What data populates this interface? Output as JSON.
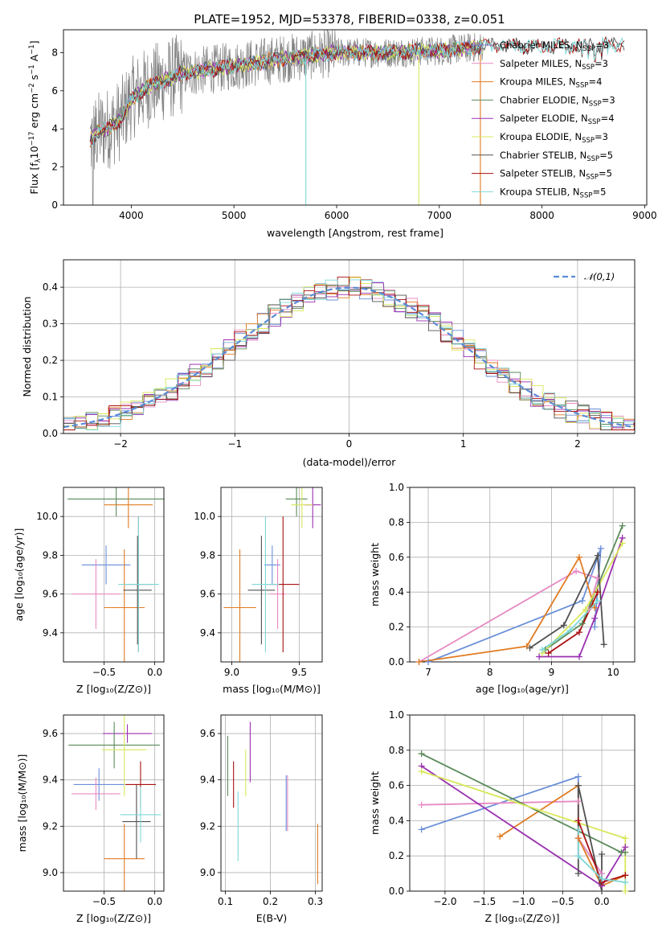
{
  "title": "PLATE=1952, MJD=53378, FIBERID=0338, z=0.051",
  "colors": {
    "Chabrier MILES": "#6a8fd8",
    "Salpeter MILES": "#e78ac3",
    "Kroupa MILES": "#e07b22",
    "Chabrier ELODIE": "#5a8a5a",
    "Salpeter ELODIE": "#9a30b0",
    "Kroupa ELODIE": "#d8e85a",
    "Chabrier STELIB": "#505050",
    "Salpeter STELIB": "#aa1010",
    "Kroupa STELIB": "#7fd7d7",
    "data": "#808080",
    "normal": "#5b8bd6"
  },
  "chart_data": [
    {
      "panel": "spectrum",
      "type": "line",
      "xlabel": "wavelength [Angstrom, rest frame]",
      "ylabel": "Flux [f_λ 10^-17 erg cm^-2 s^-1 A^-1]",
      "xlim": [
        3340,
        9020
      ],
      "ylim": [
        0,
        9.2
      ],
      "xticks": [
        4000,
        5000,
        6000,
        7000,
        8000,
        9000
      ],
      "yticks": [
        0,
        2,
        4,
        6,
        8
      ],
      "legend": [
        {
          "name": "Chabrier MILES",
          "nssp": "3"
        },
        {
          "name": "Salpeter MILES",
          "nssp": "3"
        },
        {
          "name": "Kroupa MILES",
          "nssp": "4"
        },
        {
          "name": "Chabrier ELODIE",
          "nssp": "3"
        },
        {
          "name": "Salpeter ELODIE",
          "nssp": "4"
        },
        {
          "name": "Kroupa ELODIE",
          "nssp": "3"
        },
        {
          "name": "Chabrier STELIB",
          "nssp": "5"
        },
        {
          "name": "Salpeter STELIB",
          "nssp": "5"
        },
        {
          "name": "Kroupa STELIB",
          "nssp": "5"
        }
      ],
      "legend_placement": "right",
      "continuum": [
        [
          3600,
          3.4
        ],
        [
          3700,
          3.9
        ],
        [
          3800,
          4.1
        ],
        [
          3900,
          4.5
        ],
        [
          4000,
          5.6
        ],
        [
          4200,
          6.3
        ],
        [
          4500,
          6.9
        ],
        [
          5000,
          7.3
        ],
        [
          5500,
          7.7
        ],
        [
          6000,
          8.0
        ],
        [
          6500,
          8.0
        ],
        [
          7000,
          8.1
        ],
        [
          7400,
          8.3
        ],
        [
          7600,
          8.4
        ],
        [
          8000,
          8.3
        ],
        [
          8500,
          8.4
        ],
        [
          8800,
          8.5
        ]
      ],
      "dropouts": [
        5700,
        6800,
        7400
      ]
    },
    {
      "panel": "residuals",
      "type": "step",
      "xlabel": "(data-model)/error",
      "ylabel": "Normed distribution",
      "xlim": [
        -2.5,
        2.5
      ],
      "ylim": [
        0,
        0.475
      ],
      "xticks": [
        -2,
        -1,
        0,
        1,
        2
      ],
      "yticks": [
        0.0,
        0.1,
        0.2,
        0.3,
        0.4
      ],
      "bin_width": 0.1,
      "reference": {
        "name": "𝒩(0,1)",
        "style": "dashed"
      },
      "legend_placement": "top-right"
    },
    {
      "panel": "age-vs-Z",
      "type": "errorbar",
      "xlabel": "Z [log10(Z/Z⊙)]",
      "ylabel": "age [log10(age/yr)]",
      "xlim": [
        -0.9,
        0.09
      ],
      "ylim": [
        9.25,
        10.15
      ],
      "xticks": [
        -0.5,
        0.0
      ],
      "yticks": [
        9.4,
        9.6,
        9.8,
        10.0
      ],
      "points": [
        {
          "series": "Chabrier ELODIE",
          "x": -0.38,
          "y": 10.09,
          "xerr": 0.48,
          "yerr": 0.09
        },
        {
          "series": "Kroupa MILES",
          "x": -0.26,
          "y": 10.06,
          "xerr": 0.24,
          "yerr": 0.12
        },
        {
          "series": "Chabrier MILES",
          "x": -0.48,
          "y": 9.75,
          "xerr": 0.24,
          "yerr": 0.1
        },
        {
          "series": "Salpeter MILES",
          "x": -0.58,
          "y": 9.6,
          "xerr": 0.24,
          "yerr": 0.18
        },
        {
          "series": "Kroupa MILES",
          "x": -0.3,
          "y": 9.53,
          "xerr": 0.2,
          "yerr": 0.3
        },
        {
          "series": "Chabrier STELIB",
          "x": -0.17,
          "y": 9.62,
          "xerr": 0.14,
          "yerr": 0.28
        },
        {
          "series": "Salpeter STELIB",
          "x": -0.16,
          "y": 9.65,
          "xerr": 0.14,
          "yerr": 0.35
        },
        {
          "series": "Kroupa STELIB",
          "x": -0.16,
          "y": 9.65,
          "xerr": 0.2,
          "yerr": 0.35
        }
      ]
    },
    {
      "panel": "age-vs-mass",
      "type": "errorbar",
      "xlabel": "mass [log10(M/M⊙)]",
      "ylabel": "",
      "xlim": [
        8.92,
        9.67
      ],
      "ylim": [
        9.25,
        10.15
      ],
      "xticks": [
        9.0,
        9.5
      ],
      "yticks": [
        9.4,
        9.6,
        9.8,
        10.0
      ],
      "points": [
        {
          "series": "Chabrier ELODIE",
          "x": 9.48,
          "y": 10.09,
          "xerr": 0.08,
          "yerr": 0.09
        },
        {
          "series": "Salpeter ELODIE",
          "x": 9.6,
          "y": 10.06,
          "xerr": 0.06,
          "yerr": 0.12
        },
        {
          "series": "Kroupa ELODIE",
          "x": 9.52,
          "y": 10.06,
          "xerr": 0.08,
          "yerr": 0.12
        },
        {
          "series": "Chabrier MILES",
          "x": 9.3,
          "y": 9.75,
          "xerr": 0.06,
          "yerr": 0.1
        },
        {
          "series": "Salpeter MILES",
          "x": 9.34,
          "y": 9.6,
          "xerr": 0.06,
          "yerr": 0.18
        },
        {
          "series": "Kroupa MILES",
          "x": 9.06,
          "y": 9.53,
          "xerr": 0.12,
          "yerr": 0.3
        },
        {
          "series": "Chabrier STELIB",
          "x": 9.22,
          "y": 9.62,
          "xerr": 0.1,
          "yerr": 0.28
        },
        {
          "series": "Salpeter STELIB",
          "x": 9.38,
          "y": 9.65,
          "xerr": 0.12,
          "yerr": 0.35
        },
        {
          "series": "Kroupa STELIB",
          "x": 9.25,
          "y": 9.65,
          "xerr": 0.1,
          "yerr": 0.35
        }
      ]
    },
    {
      "panel": "weight-vs-age",
      "type": "line",
      "xlabel": "age [log10(age/yr)]",
      "ylabel": "mass weight",
      "xlim": [
        6.7,
        10.35
      ],
      "ylim": [
        0,
        1.0
      ],
      "xticks": [
        7,
        8,
        9,
        10
      ],
      "yticks": [
        0.0,
        0.2,
        0.4,
        0.6,
        0.8,
        1.0
      ],
      "series": [
        {
          "name": "Chabrier MILES",
          "points": [
            [
              7.0,
              0.0
            ],
            [
              9.5,
              0.35
            ],
            [
              9.8,
              0.65
            ],
            [
              9.7,
              0.2
            ]
          ]
        },
        {
          "name": "Salpeter MILES",
          "points": [
            [
              6.85,
              0.0
            ],
            [
              9.4,
              0.52
            ],
            [
              9.75,
              0.48
            ],
            [
              9.6,
              0.3
            ]
          ]
        },
        {
          "name": "Kroupa MILES",
          "points": [
            [
              6.85,
              0.0
            ],
            [
              8.6,
              0.09
            ],
            [
              9.45,
              0.6
            ],
            [
              9.7,
              0.31
            ]
          ]
        },
        {
          "name": "Chabrier ELODIE",
          "points": [
            [
              8.9,
              0.07
            ],
            [
              9.5,
              0.22
            ],
            [
              10.15,
              0.78
            ]
          ]
        },
        {
          "name": "Salpeter ELODIE",
          "points": [
            [
              8.8,
              0.03
            ],
            [
              9.45,
              0.03
            ],
            [
              9.7,
              0.25
            ],
            [
              10.15,
              0.71
            ]
          ]
        },
        {
          "name": "Kroupa ELODIE",
          "points": [
            [
              8.85,
              0.05
            ],
            [
              9.55,
              0.3
            ],
            [
              10.15,
              0.68
            ]
          ]
        },
        {
          "name": "Chabrier STELIB",
          "points": [
            [
              8.65,
              0.08
            ],
            [
              9.2,
              0.21
            ],
            [
              9.75,
              0.61
            ],
            [
              9.85,
              0.1
            ]
          ]
        },
        {
          "name": "Salpeter STELIB",
          "points": [
            [
              8.95,
              0.05
            ],
            [
              9.45,
              0.17
            ],
            [
              9.75,
              0.4
            ]
          ]
        },
        {
          "name": "Kroupa STELIB",
          "points": [
            [
              8.85,
              0.07
            ],
            [
              9.3,
              0.18
            ],
            [
              9.75,
              0.35
            ]
          ]
        }
      ]
    },
    {
      "panel": "mass-vs-Z",
      "type": "errorbar",
      "xlabel": "Z [log10(Z/Z⊙)]",
      "ylabel": "mass [log10(M/M⊙)]",
      "xlim": [
        -0.9,
        0.09
      ],
      "ylim": [
        8.92,
        9.68
      ],
      "xticks": [
        -0.5,
        0.0
      ],
      "yticks": [
        9.0,
        9.2,
        9.4,
        9.6
      ],
      "points": [
        {
          "series": "Salpeter ELODIE",
          "x": -0.27,
          "y": 9.6,
          "xerr": 0.24,
          "yerr": 0.04
        },
        {
          "series": "Chabrier ELODIE",
          "x": -0.4,
          "y": 9.55,
          "xerr": 0.45,
          "yerr": 0.1
        },
        {
          "series": "Kroupa ELODIE",
          "x": -0.3,
          "y": 9.53,
          "xerr": 0.22,
          "yerr": 0.2
        },
        {
          "series": "Chabrier MILES",
          "x": -0.55,
          "y": 9.38,
          "xerr": 0.25,
          "yerr": 0.07
        },
        {
          "series": "Salpeter MILES",
          "x": -0.58,
          "y": 9.34,
          "xerr": 0.24,
          "yerr": 0.07
        },
        {
          "series": "Kroupa MILES",
          "x": -0.3,
          "y": 9.06,
          "xerr": 0.2,
          "yerr": 0.15
        },
        {
          "series": "Chabrier STELIB",
          "x": -0.18,
          "y": 9.22,
          "xerr": 0.14,
          "yerr": 0.16
        },
        {
          "series": "Salpeter STELIB",
          "x": -0.14,
          "y": 9.38,
          "xerr": 0.15,
          "yerr": 0.1
        },
        {
          "series": "Kroupa STELIB",
          "x": -0.14,
          "y": 9.25,
          "xerr": 0.2,
          "yerr": 0.12
        }
      ]
    },
    {
      "panel": "mass-vs-EBV",
      "type": "errorbar",
      "xlabel": "E(B-V)",
      "ylabel": "",
      "xlim": [
        0.09,
        0.315
      ],
      "ylim": [
        8.92,
        9.68
      ],
      "xticks": [
        0.1,
        0.2,
        0.3
      ],
      "yticks": [
        9.0,
        9.2,
        9.4,
        9.6
      ],
      "points": [
        {
          "series": "Chabrier ELODIE",
          "x": 0.105,
          "y": 9.46,
          "xerr": 0.0,
          "yerr": 0.13
        },
        {
          "series": "Salpeter STELIB",
          "x": 0.118,
          "y": 9.38,
          "xerr": 0.0,
          "yerr": 0.1
        },
        {
          "series": "Kroupa STELIB",
          "x": 0.128,
          "y": 9.2,
          "xerr": 0.0,
          "yerr": 0.15
        },
        {
          "series": "Kroupa ELODIE",
          "x": 0.145,
          "y": 9.43,
          "xerr": 0.0,
          "yerr": 0.1
        },
        {
          "series": "Salpeter ELODIE",
          "x": 0.155,
          "y": 9.52,
          "xerr": 0.0,
          "yerr": 0.13
        },
        {
          "series": "Chabrier MILES",
          "x": 0.235,
          "y": 9.3,
          "xerr": 0.0,
          "yerr": 0.12
        },
        {
          "series": "Salpeter MILES",
          "x": 0.238,
          "y": 9.3,
          "xerr": 0.0,
          "yerr": 0.12
        },
        {
          "series": "Kroupa MILES",
          "x": 0.305,
          "y": 9.08,
          "xerr": 0.0,
          "yerr": 0.13
        }
      ]
    },
    {
      "panel": "weight-vs-Z",
      "type": "line",
      "xlabel": "Z [log10(Z/Z⊙)]",
      "ylabel": "mass weight",
      "xlim": [
        -2.45,
        0.42
      ],
      "ylim": [
        0,
        1.0
      ],
      "xticks": [
        -2.0,
        -1.5,
        -1.0,
        -0.5,
        0.0
      ],
      "yticks": [
        0.0,
        0.2,
        0.4,
        0.6,
        0.8,
        1.0
      ],
      "series": [
        {
          "name": "Chabrier MILES",
          "points": [
            [
              -2.3,
              0.35
            ],
            [
              -0.3,
              0.65
            ],
            [
              -0.3,
              0.3
            ],
            [
              0.0,
              0.1
            ]
          ]
        },
        {
          "name": "Salpeter MILES",
          "points": [
            [
              -2.3,
              0.49
            ],
            [
              -0.3,
              0.51
            ],
            [
              -0.3,
              0.3
            ],
            [
              0.0,
              0.1
            ]
          ]
        },
        {
          "name": "Kroupa MILES",
          "points": [
            [
              -1.3,
              0.31
            ],
            [
              -0.3,
              0.6
            ],
            [
              -0.3,
              0.3
            ],
            [
              0.0,
              0.03
            ],
            [
              0.3,
              0.09
            ]
          ]
        },
        {
          "name": "Chabrier ELODIE",
          "points": [
            [
              -2.3,
              0.78
            ],
            [
              0.25,
              0.22
            ],
            [
              0.3,
              0.22
            ]
          ]
        },
        {
          "name": "Salpeter ELODIE",
          "points": [
            [
              -2.3,
              0.71
            ],
            [
              0.0,
              0.03
            ],
            [
              0.3,
              0.25
            ]
          ]
        },
        {
          "name": "Kroupa ELODIE",
          "points": [
            [
              -2.3,
              0.68
            ],
            [
              0.3,
              0.3
            ],
            [
              0.3,
              0.0
            ]
          ]
        },
        {
          "name": "Chabrier STELIB",
          "points": [
            [
              -0.3,
              0.1
            ],
            [
              -0.3,
              0.6
            ],
            [
              0.0,
              0.0
            ],
            [
              0.0,
              0.21
            ]
          ]
        },
        {
          "name": "Salpeter STELIB",
          "points": [
            [
              -0.3,
              0.4
            ],
            [
              0.0,
              0.05
            ],
            [
              0.3,
              0.09
            ]
          ]
        },
        {
          "name": "Kroupa STELIB",
          "points": [
            [
              -0.3,
              0.35
            ],
            [
              -0.3,
              0.2
            ],
            [
              0.0,
              0.07
            ],
            [
              0.3,
              0.05
            ]
          ]
        }
      ]
    }
  ]
}
